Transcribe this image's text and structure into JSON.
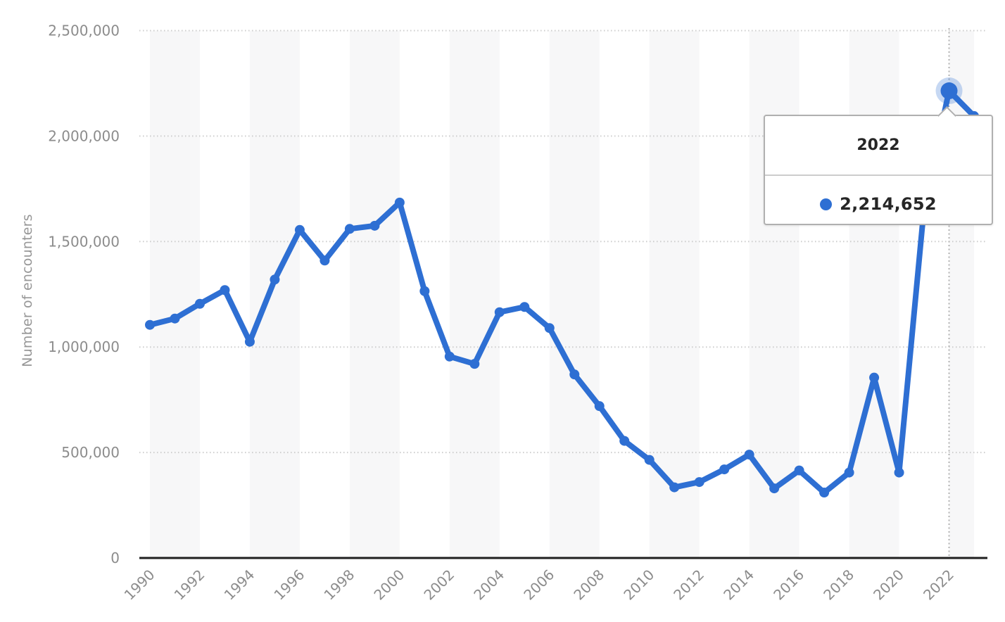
{
  "chart_data": {
    "type": "line",
    "title": "",
    "xlabel": "",
    "ylabel": "Number of encounters",
    "x": [
      1990,
      1991,
      1992,
      1993,
      1994,
      1995,
      1996,
      1997,
      1998,
      1999,
      2000,
      2001,
      2002,
      2003,
      2004,
      2005,
      2006,
      2007,
      2008,
      2009,
      2010,
      2011,
      2012,
      2013,
      2014,
      2015,
      2016,
      2017,
      2018,
      2019,
      2020,
      2021,
      2022,
      2023
    ],
    "values": [
      1105000,
      1135000,
      1205000,
      1270000,
      1025000,
      1320000,
      1555000,
      1410000,
      1560000,
      1575000,
      1685000,
      1265000,
      955000,
      920000,
      1165000,
      1190000,
      1090000,
      870000,
      720000,
      555000,
      465000,
      335000,
      360000,
      420000,
      490000,
      330000,
      415000,
      310000,
      405000,
      855000,
      405000,
      1660000,
      2214652,
      2095000
    ],
    "series_name": "Number of encounters",
    "x_tick_labels": [
      "1990",
      "1992",
      "1994",
      "1996",
      "1998",
      "2000",
      "2002",
      "2004",
      "2006",
      "2008",
      "2010",
      "2012",
      "2014",
      "2016",
      "2018",
      "2020",
      "2022"
    ],
    "y_ticks": [
      0,
      500000,
      1000000,
      1500000,
      2000000,
      2500000
    ],
    "y_tick_labels": [
      "0",
      "500,000",
      "1,000,000",
      "1,500,000",
      "2,000,000",
      "2,500,000"
    ],
    "ylim": [
      0,
      2500000
    ],
    "xlim": [
      1990,
      2023
    ],
    "grid": "horizontal-dotted",
    "alternating_bands": "two-year bands starting 1990, every 4 years",
    "legend_position": "none",
    "highlight": {
      "year": 2022,
      "value": 2214652
    }
  },
  "tooltip": {
    "title": "2022",
    "value": "2,214,652"
  },
  "colors": {
    "line": "#2e6fd3",
    "band": "#f7f7f8",
    "grid": "#cdcdcd",
    "guide": "#b3b3b3",
    "axis": "#1f1f1f",
    "tick_text": "#8c8c8c",
    "axis_title_text": "#979797",
    "tooltip_border": "#b0b0b0",
    "tooltip_divider": "#cccccc",
    "tooltip_text": "#262626"
  }
}
